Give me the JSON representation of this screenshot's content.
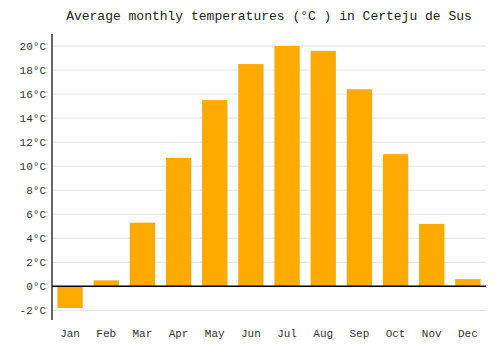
{
  "chart_data": {
    "type": "bar",
    "title": "Average monthly temperatures (°C ) in Certeju de Sus",
    "categories": [
      "Jan",
      "Feb",
      "Mar",
      "Apr",
      "May",
      "Jun",
      "Jul",
      "Aug",
      "Sep",
      "Oct",
      "Nov",
      "Dec"
    ],
    "values": [
      -1.8,
      0.5,
      5.3,
      10.7,
      15.5,
      18.5,
      20.0,
      19.6,
      16.4,
      11.0,
      5.2,
      0.6
    ],
    "color": "#FFAA00",
    "ylim": [
      -2.8,
      21.0
    ],
    "yticks": [
      {
        "value": -2,
        "label": "-2°C"
      },
      {
        "value": 0,
        "label": "0°C"
      },
      {
        "value": 2,
        "label": "2°C"
      },
      {
        "value": 4,
        "label": "4°C"
      },
      {
        "value": 6,
        "label": "6°C"
      },
      {
        "value": 8,
        "label": "8°C"
      },
      {
        "value": 10,
        "label": "10°C"
      },
      {
        "value": 12,
        "label": "12°C"
      },
      {
        "value": 14,
        "label": "14°C"
      },
      {
        "value": 16,
        "label": "16°C"
      },
      {
        "value": 18,
        "label": "18°C"
      },
      {
        "value": 20,
        "label": "20°C"
      }
    ],
    "grid": true
  }
}
